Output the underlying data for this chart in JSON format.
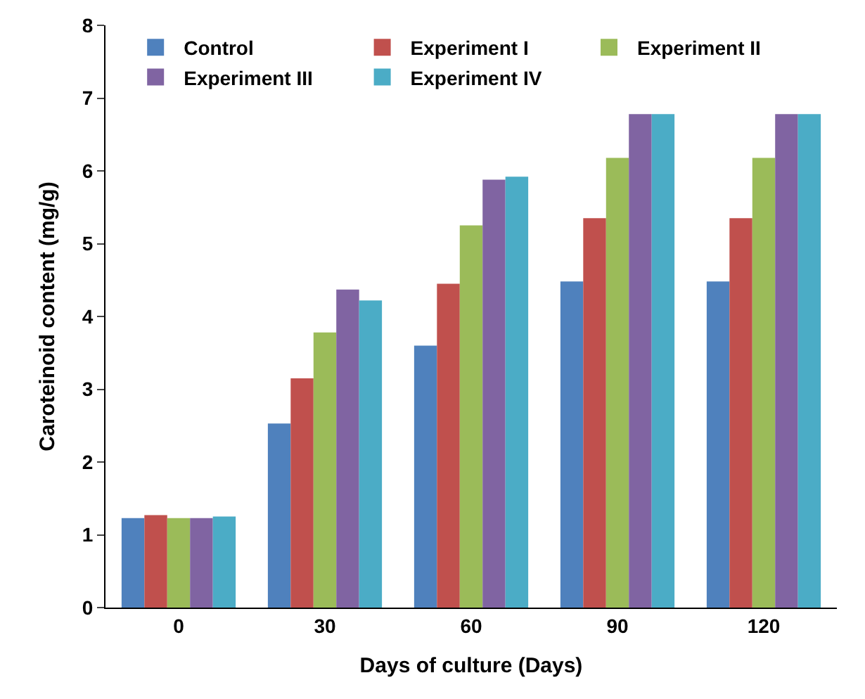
{
  "chart_data": {
    "type": "bar",
    "xlabel": "Days of culture (Days)",
    "ylabel": "Caroteinoid content (mg/g)",
    "categories": [
      "0",
      "30",
      "60",
      "90",
      "120"
    ],
    "series": [
      {
        "name": "Control",
        "color": "#4f81bd",
        "values": [
          1.23,
          2.53,
          3.6,
          4.48,
          4.48
        ]
      },
      {
        "name": "Experiment I",
        "color": "#c0504d",
        "values": [
          1.27,
          3.15,
          4.45,
          5.35,
          5.35
        ]
      },
      {
        "name": "Experiment II",
        "color": "#9bbb59",
        "values": [
          1.23,
          3.78,
          5.25,
          6.18,
          6.18
        ]
      },
      {
        "name": "Experiment III",
        "color": "#8064a2",
        "values": [
          1.23,
          4.37,
          5.88,
          6.78,
          6.78
        ]
      },
      {
        "name": "Experiment IV",
        "color": "#4bacc6",
        "values": [
          1.25,
          4.22,
          5.92,
          6.78,
          6.78
        ]
      }
    ],
    "ylim": [
      0,
      8
    ],
    "yticks": [
      0,
      1,
      2,
      3,
      4,
      5,
      6,
      7,
      8
    ],
    "legend": "top"
  }
}
